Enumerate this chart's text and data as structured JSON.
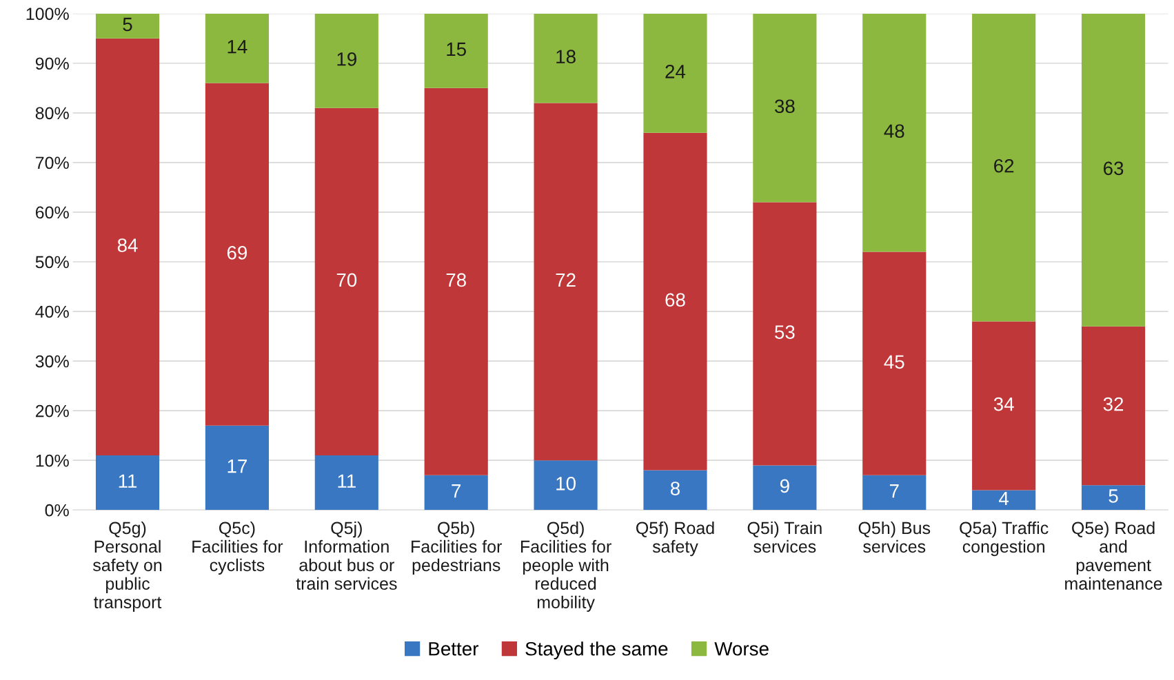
{
  "chart_data": {
    "type": "bar",
    "stacked": true,
    "categories": [
      "Q5g)\nPersonal\nsafety on\npublic\ntransport",
      "Q5c)\nFacilities for\ncyclists",
      "Q5j)\nInformation\nabout bus or\ntrain services",
      "Q5b)\nFacilities for\npedestrians",
      "Q5d)\nFacilities for\npeople with\nreduced\nmobility",
      "Q5f) Road\nsafety",
      "Q5i) Train\nservices",
      "Q5h) Bus\nservices",
      "Q5a) Traffic\ncongestion",
      "Q5e) Road\nand\npavement\nmaintenance"
    ],
    "series": [
      {
        "name": "Better",
        "color": "#3a77c2",
        "values": [
          11,
          17,
          11,
          7,
          10,
          8,
          9,
          7,
          4,
          5
        ]
      },
      {
        "name": "Stayed the same",
        "color": "#c0373a",
        "values": [
          84,
          69,
          70,
          78,
          72,
          68,
          53,
          45,
          34,
          32
        ]
      },
      {
        "name": "Worse",
        "color": "#8cb83f",
        "values": [
          5,
          14,
          19,
          15,
          18,
          24,
          38,
          48,
          62,
          63
        ]
      }
    ],
    "ylim": [
      0,
      100
    ],
    "yticks": [
      {
        "value": 0,
        "label": "0%"
      },
      {
        "value": 10,
        "label": "10%"
      },
      {
        "value": 20,
        "label": "20%"
      },
      {
        "value": 30,
        "label": "30%"
      },
      {
        "value": 40,
        "label": "40%"
      },
      {
        "value": 50,
        "label": "50%"
      },
      {
        "value": 60,
        "label": "60%"
      },
      {
        "value": 70,
        "label": "70%"
      },
      {
        "value": 80,
        "label": "80%"
      },
      {
        "value": 90,
        "label": "90%"
      },
      {
        "value": 100,
        "label": "100%"
      }
    ],
    "grid": "y",
    "legend": "bottom",
    "data_labels": true
  }
}
